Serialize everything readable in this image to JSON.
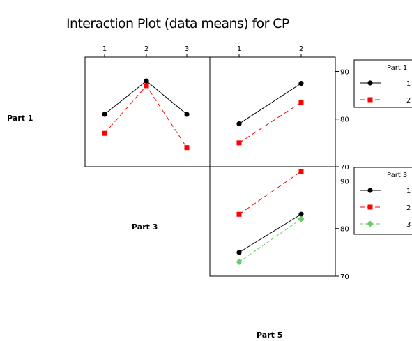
{
  "chart_data": {
    "type": "line",
    "title": "Interaction Plot (data means) for CP",
    "factors": [
      "Part 1",
      "Part 3",
      "Part 5"
    ],
    "ylim": [
      70,
      93
    ],
    "yticks": [
      70,
      80,
      90
    ],
    "panels": [
      {
        "id": "part1-by-part3",
        "x_factor": "Part 3",
        "trace_factor": "Part 1",
        "x": [
          "1",
          "2",
          "3"
        ],
        "series": [
          {
            "name": "1",
            "values": [
              81,
              88,
              81
            ]
          },
          {
            "name": "2",
            "values": [
              77,
              87,
              74
            ]
          }
        ]
      },
      {
        "id": "part1-by-part5",
        "x_factor": "Part 5",
        "trace_factor": "Part 1",
        "x": [
          "1",
          "2"
        ],
        "series": [
          {
            "name": "1",
            "values": [
              79,
              87.5
            ]
          },
          {
            "name": "2",
            "values": [
              75,
              83.5
            ]
          }
        ]
      },
      {
        "id": "part3-by-part5",
        "x_factor": "Part 5",
        "trace_factor": "Part 3",
        "x": [
          "1",
          "2"
        ],
        "series": [
          {
            "name": "1",
            "values": [
              75,
              83
            ]
          },
          {
            "name": "2",
            "values": [
              83,
              92
            ]
          },
          {
            "name": "3",
            "values": [
              73,
              82
            ]
          }
        ]
      }
    ],
    "legends": [
      {
        "title": "Part 1",
        "entries": [
          "1",
          "2"
        ]
      },
      {
        "title": "Part 3",
        "entries": [
          "1",
          "2",
          "3"
        ]
      }
    ],
    "styles": [
      {
        "color": "#000000",
        "marker": "circle",
        "dash": ""
      },
      {
        "color": "#ff0000",
        "marker": "square",
        "dash": "7,4"
      },
      {
        "color": "#66cc66",
        "marker": "diamond",
        "dash": "5,3"
      }
    ]
  }
}
